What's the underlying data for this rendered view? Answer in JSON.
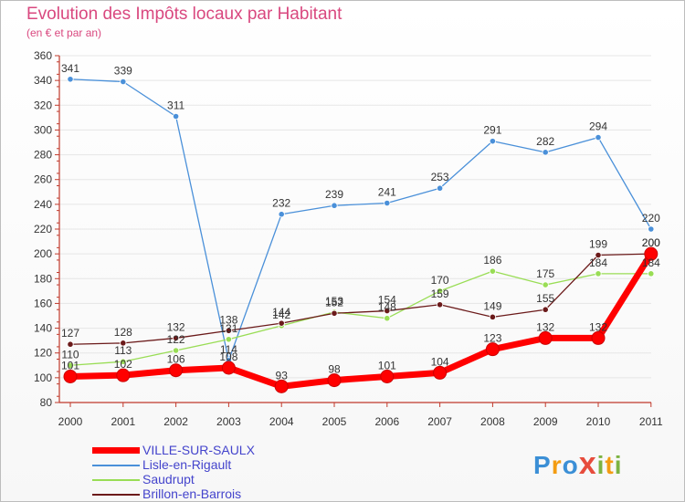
{
  "colors": {
    "title": "#d9487f",
    "axis": "#c0392b",
    "grid": "#e6e6e6",
    "labels": "#333333",
    "legend_text": "#4444cc"
  },
  "chart_data": {
    "type": "line",
    "title": "Evolution des Impôts locaux par Habitant",
    "subtitle": "(en € et par an)",
    "xlabel": "",
    "ylabel": "",
    "x": [
      "2000",
      "2001",
      "2002",
      "2003",
      "2004",
      "2005",
      "2006",
      "2007",
      "2008",
      "2009",
      "2010",
      "2011"
    ],
    "ylim": [
      80,
      360
    ],
    "yticks": [
      "80",
      "100",
      "120",
      "140",
      "160",
      "180",
      "200",
      "220",
      "240",
      "260",
      "280",
      "300",
      "320",
      "340",
      "360"
    ],
    "grid": "horizontal",
    "legend_position": "bottom-left",
    "series": [
      {
        "name": "VILLE-SUR-SAULX",
        "color": "#ff0000",
        "emphasis": true,
        "values": [
          101,
          102,
          106,
          108,
          93,
          98,
          101,
          104,
          123,
          132,
          132,
          200
        ],
        "labels": [
          "101",
          "102",
          "106",
          "108",
          "93",
          "98",
          "101",
          "104",
          "123",
          "132",
          "132",
          "200"
        ]
      },
      {
        "name": "Lisle-en-Rigault",
        "color": "#4a90d9",
        "emphasis": false,
        "values": [
          341,
          339,
          311,
          114,
          232,
          239,
          241,
          253,
          291,
          282,
          294,
          220
        ],
        "labels": [
          "341",
          "339",
          "311",
          "114",
          "232",
          "239",
          "241",
          "253",
          "291",
          "282",
          "294",
          "220"
        ]
      },
      {
        "name": "Saudrupt",
        "color": "#99dd55",
        "emphasis": false,
        "values": [
          110,
          113,
          122,
          131,
          142,
          153,
          148,
          170,
          186,
          175,
          184,
          184
        ],
        "labels": [
          "110",
          "113",
          "122",
          "131",
          "142",
          "153",
          "148",
          "170",
          "186",
          "175",
          "184",
          "184"
        ]
      },
      {
        "name": "Brillon-en-Barrois",
        "color": "#6b1a1a",
        "emphasis": false,
        "values": [
          127,
          128,
          132,
          138,
          144,
          152,
          154,
          159,
          149,
          155,
          199,
          200
        ],
        "labels": [
          "127",
          "128",
          "132",
          "138",
          "144",
          "152",
          "154",
          "159",
          "149",
          "155",
          "199",
          "200"
        ]
      }
    ]
  },
  "brand": {
    "letters": [
      "P",
      "r",
      "o",
      "x",
      "i",
      "t",
      "i"
    ],
    "colors": [
      "#3b8fd6",
      "#f39c12",
      "#3b8fd6",
      "#e74c3c",
      "#7cb342",
      "#f39c12",
      "#7cb342"
    ]
  }
}
